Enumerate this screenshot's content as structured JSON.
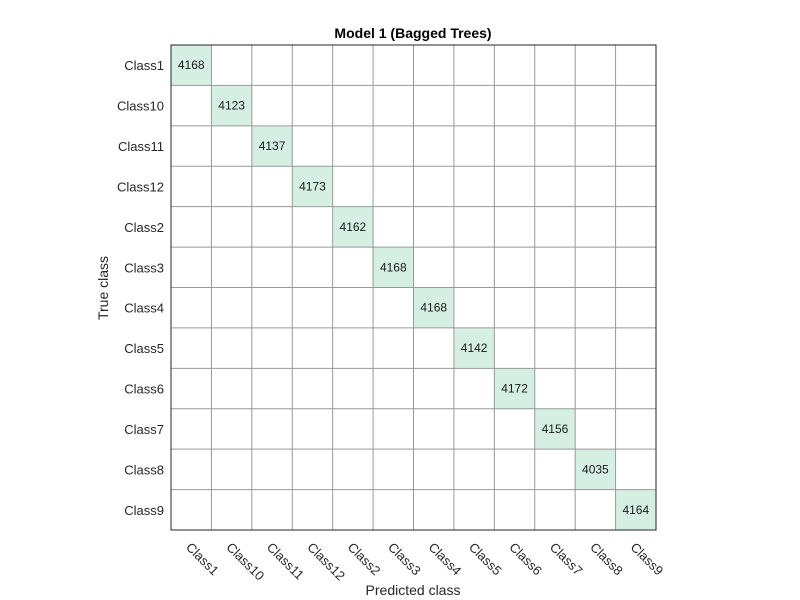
{
  "chart_data": {
    "type": "heatmap",
    "title": "Model 1 (Bagged Trees)",
    "xlabel": "Predicted class",
    "ylabel": "True class",
    "x_categories": [
      "Class1",
      "Class10",
      "Class11",
      "Class12",
      "Class2",
      "Class3",
      "Class4",
      "Class5",
      "Class6",
      "Class7",
      "Class8",
      "Class9"
    ],
    "y_categories": [
      "Class1",
      "Class10",
      "Class11",
      "Class12",
      "Class2",
      "Class3",
      "Class4",
      "Class5",
      "Class6",
      "Class7",
      "Class8",
      "Class9"
    ],
    "values": [
      [
        4168,
        0,
        0,
        0,
        0,
        0,
        0,
        0,
        0,
        0,
        0,
        0
      ],
      [
        0,
        4123,
        0,
        0,
        0,
        0,
        0,
        0,
        0,
        0,
        0,
        0
      ],
      [
        0,
        0,
        4137,
        0,
        0,
        0,
        0,
        0,
        0,
        0,
        0,
        0
      ],
      [
        0,
        0,
        0,
        4173,
        0,
        0,
        0,
        0,
        0,
        0,
        0,
        0
      ],
      [
        0,
        0,
        0,
        0,
        4162,
        0,
        0,
        0,
        0,
        0,
        0,
        0
      ],
      [
        0,
        0,
        0,
        0,
        0,
        4168,
        0,
        0,
        0,
        0,
        0,
        0
      ],
      [
        0,
        0,
        0,
        0,
        0,
        0,
        4168,
        0,
        0,
        0,
        0,
        0
      ],
      [
        0,
        0,
        0,
        0,
        0,
        0,
        0,
        4142,
        0,
        0,
        0,
        0
      ],
      [
        0,
        0,
        0,
        0,
        0,
        0,
        0,
        0,
        4172,
        0,
        0,
        0
      ],
      [
        0,
        0,
        0,
        0,
        0,
        0,
        0,
        0,
        0,
        4156,
        0,
        0
      ],
      [
        0,
        0,
        0,
        0,
        0,
        0,
        0,
        0,
        0,
        0,
        4035,
        0
      ],
      [
        0,
        0,
        0,
        0,
        0,
        0,
        0,
        0,
        0,
        0,
        0,
        4164
      ]
    ],
    "colors": {
      "correct_cell": "#d6efe3",
      "grid_line": "#999999",
      "frame_line": "#262626"
    },
    "grid": true
  }
}
